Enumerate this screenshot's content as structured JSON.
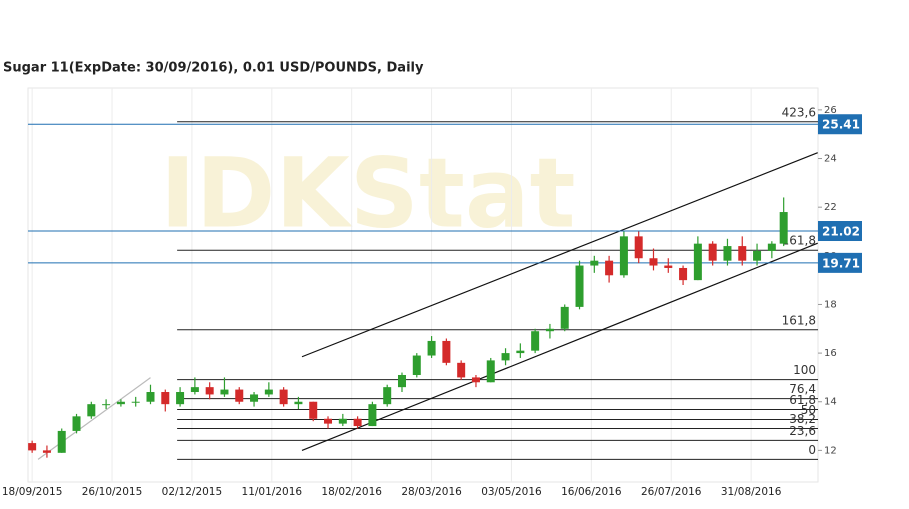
{
  "chart_data": {
    "type": "candlestick",
    "title": "Sugar 11(ExpDate: 30/09/2016), 0.01 USD/POUNDS, Daily",
    "watermark": "IDKStat",
    "up_color": "#2e9e2e",
    "down_color": "#d42a2a",
    "x": [
      0,
      5,
      10,
      15,
      20,
      25,
      30,
      35,
      40,
      45,
      50,
      55,
      60,
      65,
      70,
      75,
      80,
      85,
      90,
      95,
      100,
      105,
      110,
      115,
      120,
      125,
      130,
      135,
      140,
      145,
      150,
      155,
      160,
      165,
      170,
      175,
      180,
      185,
      190,
      195,
      200,
      205,
      210,
      215,
      220,
      225,
      230,
      235,
      240,
      245,
      250,
      254
    ],
    "open": [
      12.3,
      12.0,
      11.9,
      12.8,
      13.4,
      13.9,
      13.9,
      14.0,
      14.0,
      14.4,
      13.9,
      14.4,
      14.6,
      14.3,
      14.5,
      14.0,
      14.3,
      14.5,
      13.9,
      14.0,
      13.3,
      13.1,
      13.3,
      13.0,
      13.9,
      14.6,
      15.1,
      15.9,
      16.5,
      15.6,
      15.0,
      14.8,
      15.7,
      16.0,
      16.1,
      16.9,
      17.0,
      17.9,
      19.6,
      19.8,
      19.2,
      20.8,
      19.9,
      19.6,
      19.5,
      19.0,
      20.5,
      19.8,
      20.4,
      19.8,
      20.2,
      20.5
    ],
    "high": [
      12.4,
      12.2,
      12.9,
      13.5,
      14.0,
      14.1,
      14.1,
      14.2,
      14.7,
      14.5,
      14.6,
      15.0,
      14.8,
      15.0,
      14.6,
      14.4,
      14.8,
      14.6,
      14.2,
      14.0,
      13.4,
      13.5,
      13.4,
      14.0,
      14.7,
      15.2,
      16.0,
      16.7,
      16.6,
      15.7,
      15.1,
      15.8,
      16.2,
      16.4,
      17.0,
      17.2,
      18.0,
      19.8,
      20.0,
      20.0,
      21.0,
      21.0,
      20.3,
      19.9,
      19.6,
      20.8,
      20.6,
      20.7,
      20.8,
      20.5,
      20.6,
      22.4
    ],
    "low": [
      11.9,
      11.7,
      11.9,
      12.7,
      13.3,
      13.7,
      13.8,
      13.8,
      13.9,
      13.6,
      13.8,
      14.3,
      14.1,
      14.2,
      13.9,
      13.8,
      14.2,
      13.8,
      13.7,
      13.2,
      12.9,
      13.0,
      12.9,
      13.0,
      13.8,
      14.4,
      15.0,
      15.8,
      15.5,
      14.9,
      14.6,
      14.8,
      15.5,
      15.8,
      16.0,
      16.6,
      16.9,
      17.8,
      19.3,
      18.9,
      19.1,
      19.7,
      19.4,
      19.3,
      18.8,
      19.0,
      19.6,
      19.6,
      19.6,
      19.6,
      19.9,
      20.4
    ],
    "close": [
      12.0,
      11.9,
      12.8,
      13.4,
      13.9,
      13.9,
      14.0,
      14.0,
      14.4,
      13.9,
      14.4,
      14.6,
      14.3,
      14.5,
      14.0,
      14.3,
      14.5,
      13.9,
      14.0,
      13.3,
      13.1,
      13.3,
      13.0,
      13.9,
      14.6,
      15.1,
      15.9,
      16.5,
      15.6,
      15.0,
      14.8,
      15.7,
      16.0,
      16.1,
      16.9,
      17.0,
      17.9,
      19.6,
      19.8,
      19.2,
      20.8,
      19.9,
      19.6,
      19.5,
      19.0,
      20.5,
      19.8,
      20.4,
      19.8,
      20.2,
      20.5,
      21.8
    ],
    "xlim": [
      -1.4,
      265.6
    ],
    "ylim": [
      10.7,
      26.9
    ],
    "yticks": [
      12,
      14,
      16,
      18,
      20,
      22,
      24,
      26
    ],
    "xticks": [
      {
        "value": 0,
        "label": "18/09/2015"
      },
      {
        "value": 27,
        "label": "26/10/2015"
      },
      {
        "value": 54,
        "label": "02/12/2015"
      },
      {
        "value": 81,
        "label": "11/01/2016"
      },
      {
        "value": 108,
        "label": "18/02/2016"
      },
      {
        "value": 135,
        "label": "28/03/2016"
      },
      {
        "value": 162,
        "label": "03/05/2016"
      },
      {
        "value": 189,
        "label": "16/06/2016"
      },
      {
        "value": 216,
        "label": "26/07/2016"
      },
      {
        "value": 243,
        "label": "31/08/2016"
      }
    ],
    "fib_start_x": 49,
    "fib_levels": [
      {
        "label": "423,6",
        "value": 25.51
      },
      {
        "label": "161,8",
        "value": 20.23
      },
      {
        "label": "161,8",
        "value": 16.96
      },
      {
        "label": "100",
        "value": 14.91
      },
      {
        "label": "76,4",
        "value": 14.13
      },
      {
        "label": "61,8",
        "value": 13.68
      },
      {
        "label": "50",
        "value": 13.27
      },
      {
        "label": "38,2",
        "value": 12.9
      },
      {
        "label": "23,6",
        "value": 12.41
      },
      {
        "label": "0",
        "value": 11.63
      }
    ],
    "price_lines": [
      {
        "value": 25.41,
        "color": "#1f6fb2"
      },
      {
        "value": 21.02,
        "color": "#1f6fb2"
      },
      {
        "value": 19.71,
        "color": "#1f6fb2"
      }
    ],
    "trendlines": [
      {
        "x": [
          91.2,
          265.5
        ],
        "y": [
          15.85,
          24.24
        ],
        "color": "#111111"
      },
      {
        "x": [
          91.2,
          265.5
        ],
        "y": [
          12.0,
          20.52
        ],
        "color": "#111111"
      },
      {
        "x": [
          2,
          40
        ],
        "y": [
          11.63,
          14.99
        ],
        "color": "#bbbbbb"
      }
    ]
  }
}
